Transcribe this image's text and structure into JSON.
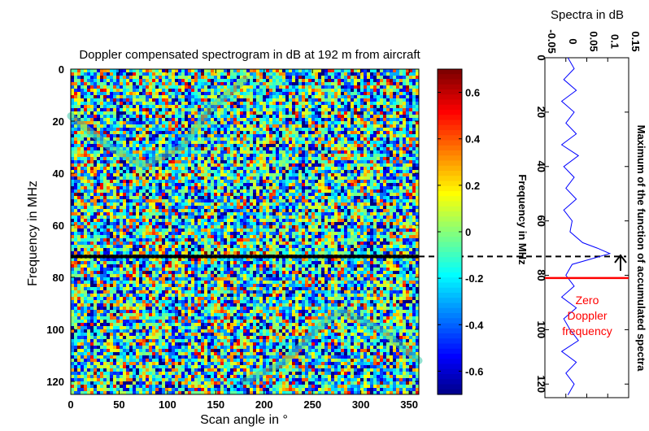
{
  "chart_data": [
    {
      "type": "heatmap",
      "title": "Doppler compensated spectrogram in dB at 192 m from aircraft",
      "xlabel": "Scan angle in °",
      "ylabel": "Frequency in MHz",
      "xlim": [
        0,
        360
      ],
      "ylim": [
        125,
        0
      ],
      "xticks": [
        "0",
        "50",
        "100",
        "150",
        "200",
        "250",
        "300",
        "350"
      ],
      "xtick_values": [
        0,
        50,
        100,
        150,
        200,
        250,
        300,
        350
      ],
      "yticks": [
        "0",
        "20",
        "40",
        "60",
        "80",
        "100",
        "120"
      ],
      "ytick_values": [
        0,
        20,
        40,
        60,
        80,
        100,
        120
      ],
      "colorbar": {
        "range": [
          -0.7,
          0.7
        ],
        "ticks": [
          "0.6",
          "0.4",
          "0.2",
          "0",
          "-0.2",
          "-0.4",
          "-0.6"
        ],
        "tick_values": [
          0.6,
          0.4,
          0.2,
          0,
          -0.2,
          -0.4,
          -0.6
        ],
        "colormap": "jet"
      },
      "highlight_line": {
        "frequency": 72,
        "color": "#000000",
        "style": "solid-dotted"
      },
      "faint_sine_traces": [
        {
          "angle": [
            0,
            40,
            75,
            115,
            145,
            180
          ],
          "frequency": [
            18,
            30,
            37,
            30,
            15,
            4
          ]
        },
        {
          "angle": [
            180,
            220,
            260,
            280,
            320,
            360
          ],
          "frequency": [
            120,
            113,
            98,
            93,
            100,
            112
          ]
        }
      ],
      "grid": false
    },
    {
      "type": "line",
      "title": "Spectra in dB",
      "ylabel": "Frequency in MHz",
      "xlim": [
        -0.05,
        0.15
      ],
      "ylim": [
        0,
        125
      ],
      "xticks": [
        "-0.05",
        "0",
        "0.05",
        "0.1",
        "0.15"
      ],
      "xtick_values": [
        -0.05,
        0,
        0.05,
        0.1,
        0.15
      ],
      "yticks": [
        "0",
        "20",
        "40",
        "60",
        "80",
        "100",
        "120"
      ],
      "ytick_values": [
        0,
        20,
        40,
        60,
        80,
        100,
        120
      ],
      "series": [
        {
          "color": "#0000ff",
          "frequency": [
            0,
            4,
            8,
            12,
            16,
            20,
            24,
            28,
            32,
            36,
            40,
            44,
            48,
            52,
            56,
            60,
            64,
            68,
            70,
            72,
            74,
            76,
            80,
            84,
            88,
            92,
            96,
            100,
            104,
            108,
            112,
            116,
            120,
            124
          ],
          "value": [
            0.005,
            0.02,
            -0.005,
            0.025,
            -0.01,
            0.02,
            0.0,
            0.025,
            -0.01,
            0.03,
            -0.005,
            0.02,
            0.0,
            0.025,
            -0.005,
            0.015,
            0.01,
            0.04,
            0.075,
            0.105,
            0.06,
            0.015,
            0.0,
            0.02,
            -0.01,
            0.025,
            -0.005,
            0.01,
            0.03,
            -0.01,
            0.025,
            0.0,
            0.02,
            0.005
          ]
        }
      ],
      "max_marker_frequency": 72,
      "zero_doppler_frequency": 81,
      "annotations": {
        "zero_doppler": [
          "Zero",
          "Doppler",
          "frequency"
        ],
        "right_label": "Maximum of the function of accumulated spectra"
      },
      "grid": false
    }
  ]
}
